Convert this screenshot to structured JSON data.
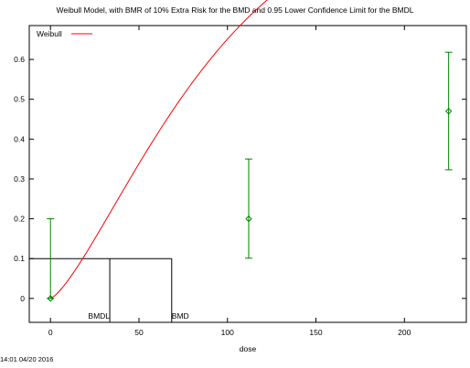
{
  "chart_data": {
    "type": "line",
    "title": "Weibull Model, with BMR of 10% Extra Risk for the BMD and 0.95 Lower Confidence Limit for the BMDL",
    "xlabel": "dose",
    "ylabel": "",
    "xlim": [
      -12,
      235
    ],
    "ylim": [
      -0.06,
      0.685
    ],
    "x_ticks": [
      0,
      50,
      100,
      150,
      200
    ],
    "y_ticks": [
      0,
      0.1,
      0.2,
      0.3,
      0.4,
      0.5,
      0.6
    ],
    "x_tick_labels": [
      "0",
      "50",
      "100",
      "150",
      "200"
    ],
    "y_tick_labels": [
      "0",
      "0.1",
      "0.2",
      "0.3",
      "0.4",
      "0.5",
      "0.6"
    ],
    "legend": {
      "position": "top-left",
      "entries": [
        {
          "label": "Weibull",
          "color": "#ff0000"
        }
      ]
    },
    "series": [
      {
        "name": "Weibull",
        "color": "#ff0000",
        "model": {
          "form": "weibull",
          "background": 0.0,
          "slope": 0.0021,
          "power": 1.35
        }
      }
    ],
    "observations": {
      "color": "#008000",
      "points": [
        {
          "x": 0,
          "y": 0.0,
          "lower": 0.0,
          "upper": 0.2
        },
        {
          "x": 112,
          "y": 0.2,
          "lower": 0.101,
          "upper": 0.35
        },
        {
          "x": 225,
          "y": 0.47,
          "lower": 0.323,
          "upper": 0.618
        }
      ]
    },
    "bmd": {
      "bmr": 0.1,
      "bmd": 68.5,
      "bmdl": 33.5,
      "bmd_label": "BMD",
      "bmdl_label": "BMDL"
    },
    "grid": false
  },
  "footer": {
    "timestamp": "14:01 04/20 2016"
  }
}
